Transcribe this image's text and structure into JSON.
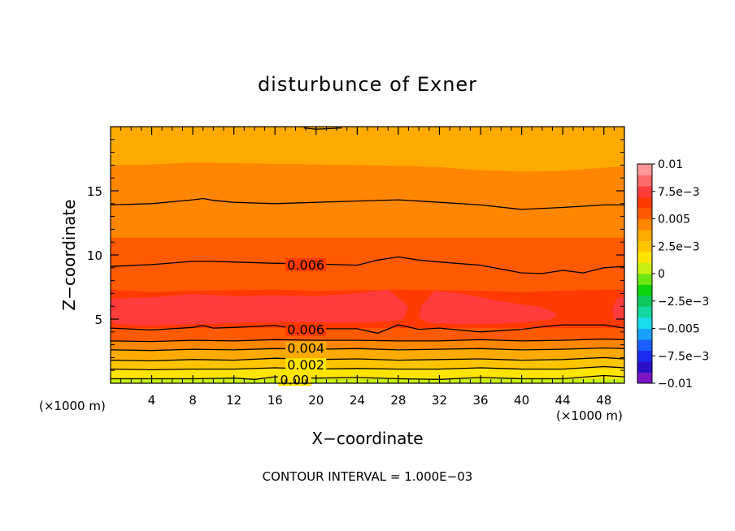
{
  "chart_data": {
    "type": "contour",
    "title": "disturbunce of Exner",
    "xlabel": "X−coordinate",
    "ylabel": "Z−coordinate",
    "x_unit": "(×1000 m)",
    "y_unit": "(×1000 m)",
    "footer": "CONTOUR INTERVAL = 1.000E−03",
    "xlim": [
      0,
      50
    ],
    "ylim": [
      0,
      20
    ],
    "x_ticks": [
      4,
      8,
      12,
      16,
      20,
      24,
      28,
      32,
      36,
      40,
      44,
      48
    ],
    "y_ticks": [
      5,
      10,
      15
    ],
    "contour_interval": 0.001,
    "colorbar": {
      "range": [
        -0.01,
        0.01
      ],
      "tick_labels": [
        "0.01",
        "7.5e−3",
        "0.005",
        "2.5e−3",
        "0",
        "−2.5e−3",
        "−0.005",
        "−7.5e−3",
        "−0.01"
      ],
      "tick_values": [
        0.01,
        0.0075,
        0.005,
        0.0025,
        0,
        -0.0025,
        -0.005,
        -0.0075,
        -0.01
      ],
      "colors": [
        "#7c14c4",
        "#2a10c8",
        "#1b2cf0",
        "#1a60ff",
        "#1aa0ff",
        "#18dcec",
        "#14d8a0",
        "#10c860",
        "#0ed40e",
        "#6ee614",
        "#c8f012",
        "#ffe400",
        "#ffc400",
        "#ffaa00",
        "#ff8600",
        "#ff5a00",
        "#ff3a00",
        "#ff3c3c",
        "#ff6a6a",
        "#ff9898"
      ]
    },
    "contour_labels": [
      {
        "text": "0.006",
        "x": 19.0,
        "y": 9.25
      },
      {
        "text": "0.006",
        "x": 19.0,
        "y": 4.2
      },
      {
        "text": "0.004",
        "x": 19.0,
        "y": 2.75
      },
      {
        "text": "0.002",
        "x": 19.0,
        "y": 1.45
      },
      {
        "text": "0.00",
        "x": 17.9,
        "y": 0.3
      }
    ],
    "contour_lines": [
      {
        "level": 0.001,
        "x": [
          0,
          4,
          8,
          12,
          14,
          16,
          20,
          24,
          28,
          32,
          36,
          40,
          44,
          48,
          50
        ],
        "z": [
          0.35,
          0.35,
          0.35,
          0.4,
          0.3,
          0.5,
          0.4,
          0.45,
          0.35,
          0.3,
          0.45,
          0.35,
          0.35,
          0.6,
          0.5
        ]
      },
      {
        "level": 0.002,
        "x": [
          0,
          4,
          8,
          12,
          16,
          20,
          24,
          28,
          32,
          36,
          40,
          44,
          48,
          50
        ],
        "z": [
          1.1,
          1.05,
          1.1,
          1.1,
          1.2,
          1.1,
          1.15,
          1.1,
          1.1,
          1.2,
          1.1,
          1.1,
          1.3,
          1.2
        ]
      },
      {
        "level": 0.003,
        "x": [
          0,
          4,
          8,
          12,
          16,
          20,
          24,
          28,
          32,
          36,
          40,
          44,
          48,
          50
        ],
        "z": [
          1.8,
          1.75,
          1.85,
          1.8,
          1.95,
          1.85,
          1.9,
          1.8,
          1.85,
          1.9,
          1.8,
          1.85,
          2.0,
          1.9
        ]
      },
      {
        "level": 0.004,
        "x": [
          0,
          4,
          8,
          12,
          16,
          20,
          24,
          28,
          32,
          36,
          40,
          44,
          48,
          50
        ],
        "z": [
          2.6,
          2.55,
          2.65,
          2.6,
          2.7,
          2.65,
          2.7,
          2.6,
          2.65,
          2.7,
          2.6,
          2.65,
          2.75,
          2.7
        ]
      },
      {
        "level": 0.005,
        "x": [
          0,
          4,
          8,
          12,
          16,
          20,
          24,
          28,
          32,
          36,
          40,
          44,
          48,
          50
        ],
        "z": [
          3.3,
          3.25,
          3.35,
          3.3,
          3.4,
          3.35,
          3.35,
          3.3,
          3.3,
          3.4,
          3.3,
          3.35,
          3.45,
          3.4
        ]
      },
      {
        "level": 0.006,
        "x": [
          0,
          4,
          8,
          9,
          10,
          12,
          16,
          18,
          20,
          24,
          26,
          28,
          30,
          32,
          36,
          40,
          42,
          44,
          46,
          48,
          50
        ],
        "z": [
          4.3,
          4.15,
          4.35,
          4.5,
          4.3,
          4.35,
          4.5,
          4.25,
          4.25,
          4.25,
          3.9,
          4.55,
          4.2,
          4.3,
          4.0,
          4.2,
          4.4,
          4.55,
          4.55,
          4.55,
          4.3
        ]
      },
      {
        "level": 0.006,
        "x": [
          0,
          4,
          8,
          10,
          12,
          16,
          20,
          24,
          26,
          28,
          30,
          32,
          36,
          40,
          42,
          44,
          46,
          48,
          50
        ],
        "z": [
          9.1,
          9.25,
          9.5,
          9.5,
          9.45,
          9.35,
          9.3,
          9.2,
          9.6,
          9.85,
          9.6,
          9.45,
          9.2,
          8.6,
          8.55,
          8.8,
          8.6,
          9.0,
          9.1
        ]
      },
      {
        "level": 0.005,
        "x": [
          0,
          4,
          8,
          9,
          10,
          12,
          16,
          20,
          24,
          28,
          32,
          36,
          40,
          44,
          48,
          50
        ],
        "z": [
          13.9,
          14.0,
          14.3,
          14.4,
          14.25,
          14.1,
          14.0,
          14.1,
          14.2,
          14.3,
          14.1,
          13.9,
          13.55,
          13.7,
          13.9,
          13.9
        ]
      },
      {
        "level": 0.003,
        "x": [
          18.8,
          20,
          22.5
        ],
        "z": [
          19.9,
          19.8,
          19.9
        ]
      }
    ],
    "filled_bands": [
      {
        "value": 0.0005,
        "top_x": [
          0,
          50
        ],
        "top_z": [
          0.35,
          0.35
        ]
      },
      {
        "value": 0.0015,
        "top_x": [
          0,
          50
        ],
        "top_z": [
          1.1,
          1.15
        ]
      },
      {
        "value": 0.0025,
        "top_x": [
          0,
          50
        ],
        "top_z": [
          1.85,
          1.9
        ]
      },
      {
        "value": 0.0035,
        "top_x": [
          0,
          50
        ],
        "top_z": [
          2.6,
          2.7
        ]
      },
      {
        "value": 0.0045,
        "top_x": [
          0,
          50
        ],
        "top_z": [
          3.3,
          3.35
        ]
      },
      {
        "value": 0.0055,
        "top_x": [
          0,
          50
        ],
        "top_z": [
          4.3,
          4.3
        ]
      },
      {
        "value": 0.0065,
        "top_x": [
          0,
          4,
          8,
          12,
          16,
          20,
          24,
          28,
          32,
          36,
          40,
          44,
          48,
          50
        ],
        "top_z": [
          7.3,
          7.1,
          7.2,
          7.25,
          7.3,
          7.2,
          7.25,
          7.3,
          7.25,
          7.2,
          7.1,
          7.2,
          7.3,
          7.3
        ]
      },
      {
        "value": 0.0055,
        "top_x": [
          0,
          50
        ],
        "top_z": [
          11.35,
          11.35
        ]
      },
      {
        "value": 0.0045,
        "top_x": [
          0,
          4,
          8,
          12,
          16,
          20,
          24,
          28,
          32,
          36,
          40,
          44,
          48,
          50
        ],
        "top_z": [
          17.0,
          17.05,
          17.2,
          17.15,
          17.1,
          17.05,
          17.0,
          16.95,
          16.85,
          16.6,
          16.5,
          16.55,
          16.8,
          16.9
        ]
      },
      {
        "value": 0.0035,
        "top_x": [
          0,
          50
        ],
        "top_z": [
          20,
          20
        ]
      }
    ],
    "high_regions": [
      {
        "value": 0.0075,
        "x": [
          0,
          0.4,
          3,
          8,
          12,
          16,
          22,
          25,
          27,
          28.5,
          29,
          27,
          24,
          20,
          16,
          12,
          8,
          4,
          0.4,
          0
        ],
        "z": [
          5.0,
          4.6,
          4.5,
          4.6,
          4.7,
          4.8,
          4.7,
          4.75,
          4.8,
          5.0,
          6.0,
          7.3,
          7.0,
          6.8,
          6.85,
          6.8,
          6.95,
          6.7,
          6.6,
          6.5
        ]
      },
      {
        "value": 0.0075,
        "x": [
          30,
          31,
          34,
          38,
          41,
          43,
          43.5,
          42,
          38,
          34,
          31.5,
          30.2
        ],
        "z": [
          5.1,
          4.7,
          4.6,
          4.65,
          4.8,
          5.0,
          5.4,
          5.9,
          6.4,
          7.0,
          7.2,
          6.0
        ]
      },
      {
        "value": 0.0075,
        "x": [
          49,
          50,
          50,
          49.3,
          48.8
        ],
        "z": [
          4.9,
          4.9,
          6.8,
          6.6,
          5.8
        ]
      }
    ]
  }
}
